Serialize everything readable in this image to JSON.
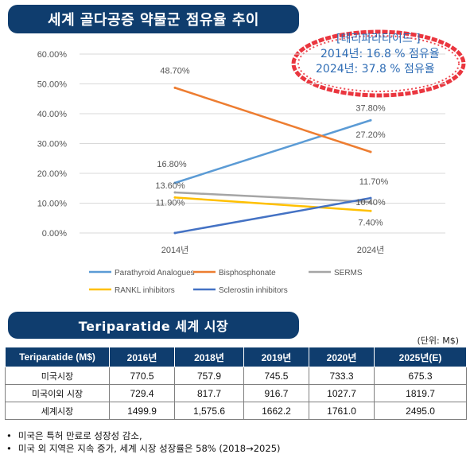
{
  "title_banner": "세계 골다공증 약물군 점유율 추이",
  "callout": {
    "heading": "[테리파라타이드 ]",
    "line1": "2014년: 16.8 % 점유율",
    "line2": "2024년: 37.8 % 점유율"
  },
  "chart_data": {
    "type": "line",
    "categories": [
      "2014년",
      "2024년"
    ],
    "y_ticks": [
      "0.00%",
      "10.00%",
      "20.00%",
      "30.00%",
      "40.00%",
      "50.00%",
      "60.00%"
    ],
    "ylim": [
      0,
      60
    ],
    "grid": true,
    "legend_position": "bottom",
    "series": [
      {
        "name": "Parathyroid Analogues",
        "values": [
          16.8,
          37.8
        ],
        "labels": [
          "16.80%",
          "37.80%"
        ],
        "color": "#5b9bd5"
      },
      {
        "name": "Bisphosphonate",
        "values": [
          48.7,
          27.2
        ],
        "labels": [
          "48.70%",
          "27.20%"
        ],
        "color": "#ed7d31"
      },
      {
        "name": "SERMS",
        "values": [
          13.6,
          10.4
        ],
        "labels": [
          "13.60%",
          "10.40%"
        ],
        "color": "#a5a5a5"
      },
      {
        "name": "RANKL inhibitors",
        "values": [
          11.9,
          7.4
        ],
        "labels": [
          "11.90%",
          "7.40%"
        ],
        "color": "#ffc000"
      },
      {
        "name": "Sclerostin inhibitors",
        "values": [
          0,
          11.7
        ],
        "labels": [
          "",
          "11.70%"
        ],
        "color": "#4472c4"
      }
    ]
  },
  "market_banner": "Teriparatide 세계 시장",
  "unit": "(단위: M$)",
  "table": {
    "headers": [
      "Teriparatide (M$)",
      "2016년",
      "2018년",
      "2019년",
      "2020년",
      "2025년(E)"
    ],
    "rows": [
      [
        "미국시장",
        "770.5",
        "757.9",
        "745.5",
        "733.3",
        "675.3"
      ],
      [
        "미국이외 시장",
        "729.4",
        "817.7",
        "916.7",
        "1027.7",
        "1819.7"
      ],
      [
        "세계시장",
        "1499.9",
        "1,575.6",
        "1662.2",
        "1761.0",
        "2495.0"
      ]
    ]
  },
  "notes": [
    "미국은 특허 만료로 성장성 감소,",
    "미국 외 지역은 지속 증가, 세계 시장 성장률은 58% (2018→2025)"
  ]
}
